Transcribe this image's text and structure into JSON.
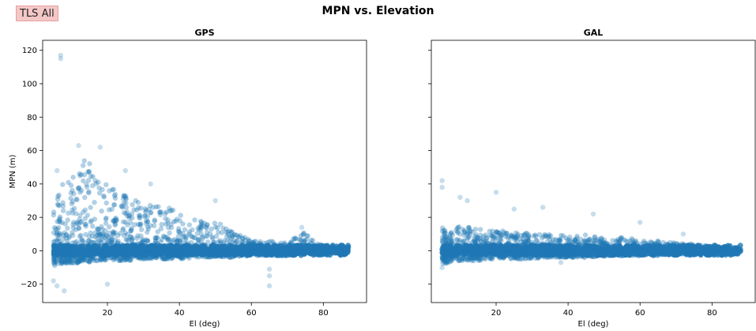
{
  "figure": {
    "badge": "TLS All",
    "suptitle": "MPN vs. Elevation",
    "marker_color": "#1f77b4"
  },
  "chart_data": [
    {
      "type": "scatter",
      "title": "GPS",
      "xlabel": "El (deg)",
      "ylabel": "MPN (m)",
      "xlim": [
        2,
        92
      ],
      "ylim": [
        -31,
        126
      ],
      "xticks": [
        20,
        40,
        60,
        80
      ],
      "yticks": [
        -20,
        0,
        20,
        40,
        60,
        80,
        100,
        120
      ],
      "grid": false,
      "density_envelope": {
        "el": [
          5,
          7,
          10,
          13,
          15,
          18,
          20,
          23,
          26,
          30,
          33,
          36,
          40,
          45,
          50,
          55,
          60,
          65,
          70,
          75,
          80,
          85,
          87
        ],
        "mpn_high": [
          25,
          40,
          45,
          55,
          55,
          42,
          40,
          35,
          35,
          33,
          30,
          30,
          22,
          18,
          18,
          12,
          6,
          6,
          5,
          12,
          2,
          1,
          1
        ],
        "mpn_low": [
          -10,
          -8,
          -8,
          -7,
          -7,
          -6,
          -6,
          -6,
          -6,
          -5,
          -5,
          -5,
          -5,
          -4,
          -4,
          -4,
          -3,
          -3,
          -3,
          -2,
          -2,
          -1,
          -1
        ]
      },
      "outliers": [
        {
          "x": 7,
          "y": 115
        },
        {
          "x": 7,
          "y": 117
        },
        {
          "x": 6,
          "y": 48
        },
        {
          "x": 5,
          "y": -18
        },
        {
          "x": 6,
          "y": -21
        },
        {
          "x": 8,
          "y": -24
        },
        {
          "x": 12,
          "y": 63
        },
        {
          "x": 18,
          "y": 62
        },
        {
          "x": 20,
          "y": -20
        },
        {
          "x": 25,
          "y": 48
        },
        {
          "x": 32,
          "y": 40
        },
        {
          "x": 50,
          "y": 30
        },
        {
          "x": 65,
          "y": -21
        },
        {
          "x": 65,
          "y": -15
        },
        {
          "x": 65,
          "y": -11
        },
        {
          "x": 74,
          "y": 14
        }
      ]
    },
    {
      "type": "scatter",
      "title": "GAL",
      "xlabel": "El (deg)",
      "ylabel": "",
      "xlim": [
        2,
        92
      ],
      "ylim": [
        -31,
        126
      ],
      "xticks": [
        20,
        40,
        60,
        80
      ],
      "yticks": [
        -20,
        0,
        20,
        40,
        60,
        80,
        100,
        120
      ],
      "ytick_labels_visible": false,
      "grid": false,
      "density_envelope": {
        "el": [
          5,
          7,
          10,
          13,
          15,
          18,
          20,
          23,
          26,
          30,
          33,
          36,
          40,
          45,
          50,
          55,
          60,
          65,
          70,
          75,
          80,
          85,
          88
        ],
        "mpn_high": [
          15,
          12,
          15,
          14,
          13,
          12,
          12,
          12,
          11,
          11,
          10,
          10,
          9,
          10,
          8,
          8,
          7,
          6,
          5,
          4,
          3,
          2,
          1
        ],
        "mpn_low": [
          -8,
          -7,
          -6,
          -6,
          -6,
          -5,
          -5,
          -5,
          -5,
          -5,
          -4,
          -4,
          -4,
          -4,
          -4,
          -3,
          -3,
          -3,
          -2,
          -2,
          -2,
          -1,
          -1
        ]
      },
      "outliers": [
        {
          "x": 5,
          "y": 42
        },
        {
          "x": 5,
          "y": 38
        },
        {
          "x": 5,
          "y": -10
        },
        {
          "x": 10,
          "y": 32
        },
        {
          "x": 12,
          "y": 30
        },
        {
          "x": 20,
          "y": 35
        },
        {
          "x": 25,
          "y": 25
        },
        {
          "x": 33,
          "y": 26
        },
        {
          "x": 38,
          "y": -7
        },
        {
          "x": 47,
          "y": 22
        },
        {
          "x": 60,
          "y": 17
        },
        {
          "x": 72,
          "y": 10
        }
      ]
    }
  ]
}
